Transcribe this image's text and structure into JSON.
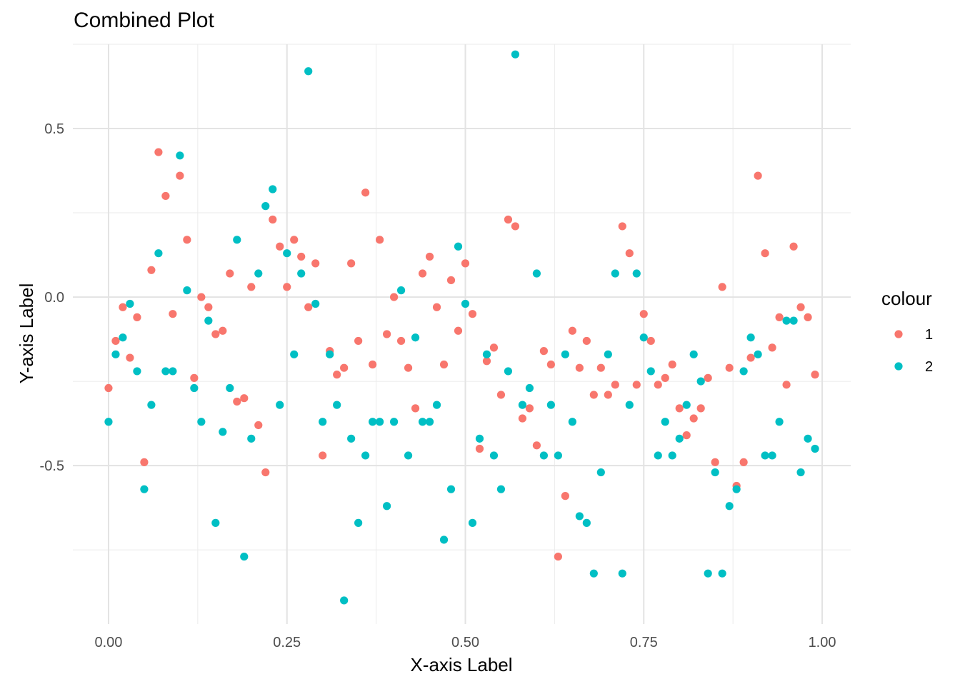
{
  "chart_data": {
    "type": "scatter",
    "title": "Combined Plot",
    "xlabel": "X-axis Label",
    "ylabel": "Y-axis Label",
    "xlim": [
      -0.05,
      1.04
    ],
    "ylim": [
      -0.97,
      0.75
    ],
    "x_ticks": [
      0,
      0.25,
      0.5,
      0.75,
      1.0
    ],
    "x_tick_labels": [
      "0.00",
      "0.25",
      "0.50",
      "0.75",
      "1.00"
    ],
    "y_ticks": [
      -0.5,
      0.0,
      0.5
    ],
    "y_tick_labels": [
      "-0.5",
      "0.0",
      "0.5"
    ],
    "grid": true,
    "legend": {
      "title": "colour",
      "position": "right"
    },
    "series": [
      {
        "name": "1",
        "color": "#F8766D",
        "points": [
          [
            0.0,
            -0.27
          ],
          [
            0.01,
            -0.13
          ],
          [
            0.02,
            -0.03
          ],
          [
            0.03,
            -0.18
          ],
          [
            0.04,
            -0.06
          ],
          [
            0.05,
            -0.49
          ],
          [
            0.06,
            0.08
          ],
          [
            0.07,
            0.43
          ],
          [
            0.08,
            0.3
          ],
          [
            0.09,
            -0.05
          ],
          [
            0.1,
            0.36
          ],
          [
            0.11,
            0.17
          ],
          [
            0.12,
            -0.24
          ],
          [
            0.13,
            0.0
          ],
          [
            0.14,
            -0.03
          ],
          [
            0.15,
            -0.11
          ],
          [
            0.16,
            -0.1
          ],
          [
            0.17,
            0.07
          ],
          [
            0.18,
            -0.31
          ],
          [
            0.19,
            -0.3
          ],
          [
            0.2,
            0.03
          ],
          [
            0.21,
            -0.38
          ],
          [
            0.22,
            -0.52
          ],
          [
            0.23,
            0.23
          ],
          [
            0.24,
            0.15
          ],
          [
            0.25,
            0.03
          ],
          [
            0.26,
            0.17
          ],
          [
            0.27,
            0.12
          ],
          [
            0.28,
            -0.03
          ],
          [
            0.29,
            0.1
          ],
          [
            0.3,
            -0.47
          ],
          [
            0.31,
            -0.16
          ],
          [
            0.32,
            -0.23
          ],
          [
            0.33,
            -0.21
          ],
          [
            0.34,
            0.1
          ],
          [
            0.35,
            -0.13
          ],
          [
            0.36,
            0.31
          ],
          [
            0.37,
            -0.2
          ],
          [
            0.38,
            0.17
          ],
          [
            0.39,
            -0.11
          ],
          [
            0.4,
            0.0
          ],
          [
            0.41,
            -0.13
          ],
          [
            0.42,
            -0.21
          ],
          [
            0.43,
            -0.33
          ],
          [
            0.44,
            0.07
          ],
          [
            0.45,
            0.12
          ],
          [
            0.46,
            -0.03
          ],
          [
            0.47,
            -0.2
          ],
          [
            0.48,
            0.05
          ],
          [
            0.49,
            -0.1
          ],
          [
            0.5,
            0.1
          ],
          [
            0.51,
            -0.05
          ],
          [
            0.52,
            -0.45
          ],
          [
            0.53,
            -0.19
          ],
          [
            0.54,
            -0.15
          ],
          [
            0.55,
            -0.29
          ],
          [
            0.56,
            0.23
          ],
          [
            0.57,
            0.21
          ],
          [
            0.58,
            -0.36
          ],
          [
            0.59,
            -0.33
          ],
          [
            0.6,
            -0.44
          ],
          [
            0.61,
            -0.16
          ],
          [
            0.62,
            -0.2
          ],
          [
            0.63,
            -0.77
          ],
          [
            0.64,
            -0.59
          ],
          [
            0.65,
            -0.1
          ],
          [
            0.66,
            -0.21
          ],
          [
            0.67,
            -0.13
          ],
          [
            0.68,
            -0.29
          ],
          [
            0.69,
            -0.21
          ],
          [
            0.7,
            -0.29
          ],
          [
            0.71,
            -0.26
          ],
          [
            0.72,
            0.21
          ],
          [
            0.73,
            0.13
          ],
          [
            0.74,
            -0.26
          ],
          [
            0.75,
            -0.05
          ],
          [
            0.76,
            -0.13
          ],
          [
            0.77,
            -0.26
          ],
          [
            0.78,
            -0.24
          ],
          [
            0.79,
            -0.2
          ],
          [
            0.8,
            -0.33
          ],
          [
            0.81,
            -0.41
          ],
          [
            0.82,
            -0.36
          ],
          [
            0.83,
            -0.33
          ],
          [
            0.84,
            -0.24
          ],
          [
            0.85,
            -0.49
          ],
          [
            0.86,
            0.03
          ],
          [
            0.87,
            -0.21
          ],
          [
            0.88,
            -0.56
          ],
          [
            0.89,
            -0.49
          ],
          [
            0.9,
            -0.18
          ],
          [
            0.91,
            0.36
          ],
          [
            0.92,
            0.13
          ],
          [
            0.93,
            -0.15
          ],
          [
            0.94,
            -0.06
          ],
          [
            0.95,
            -0.26
          ],
          [
            0.96,
            0.15
          ],
          [
            0.97,
            -0.03
          ],
          [
            0.98,
            -0.06
          ],
          [
            0.99,
            -0.23
          ]
        ]
      },
      {
        "name": "2",
        "color": "#00BFC4",
        "points": [
          [
            0.0,
            -0.37
          ],
          [
            0.01,
            -0.17
          ],
          [
            0.02,
            -0.12
          ],
          [
            0.03,
            -0.02
          ],
          [
            0.04,
            -0.22
          ],
          [
            0.05,
            -0.57
          ],
          [
            0.06,
            -0.32
          ],
          [
            0.07,
            0.13
          ],
          [
            0.08,
            -0.22
          ],
          [
            0.09,
            -0.22
          ],
          [
            0.1,
            0.42
          ],
          [
            0.11,
            0.02
          ],
          [
            0.12,
            -0.27
          ],
          [
            0.13,
            -0.37
          ],
          [
            0.14,
            -0.07
          ],
          [
            0.15,
            -0.67
          ],
          [
            0.16,
            -0.4
          ],
          [
            0.17,
            -0.27
          ],
          [
            0.18,
            0.17
          ],
          [
            0.19,
            -0.77
          ],
          [
            0.2,
            -0.42
          ],
          [
            0.21,
            0.07
          ],
          [
            0.22,
            0.27
          ],
          [
            0.23,
            0.32
          ],
          [
            0.24,
            -0.32
          ],
          [
            0.25,
            0.13
          ],
          [
            0.26,
            -0.17
          ],
          [
            0.27,
            0.07
          ],
          [
            0.28,
            0.67
          ],
          [
            0.29,
            -0.02
          ],
          [
            0.3,
            -0.37
          ],
          [
            0.31,
            -0.17
          ],
          [
            0.32,
            -0.32
          ],
          [
            0.33,
            -0.9
          ],
          [
            0.34,
            -0.42
          ],
          [
            0.35,
            -0.67
          ],
          [
            0.36,
            -0.47
          ],
          [
            0.37,
            -0.37
          ],
          [
            0.38,
            -0.37
          ],
          [
            0.39,
            -0.62
          ],
          [
            0.4,
            -0.37
          ],
          [
            0.41,
            0.02
          ],
          [
            0.42,
            -0.47
          ],
          [
            0.43,
            -0.12
          ],
          [
            0.44,
            -0.37
          ],
          [
            0.45,
            -0.37
          ],
          [
            0.46,
            -0.32
          ],
          [
            0.47,
            -0.72
          ],
          [
            0.48,
            -0.57
          ],
          [
            0.49,
            0.15
          ],
          [
            0.5,
            -0.02
          ],
          [
            0.51,
            -0.67
          ],
          [
            0.52,
            -0.42
          ],
          [
            0.53,
            -0.17
          ],
          [
            0.54,
            -0.47
          ],
          [
            0.55,
            -0.57
          ],
          [
            0.56,
            -0.22
          ],
          [
            0.57,
            0.72
          ],
          [
            0.58,
            -0.32
          ],
          [
            0.59,
            -0.27
          ],
          [
            0.6,
            0.07
          ],
          [
            0.61,
            -0.47
          ],
          [
            0.62,
            -0.32
          ],
          [
            0.63,
            -0.47
          ],
          [
            0.64,
            -0.17
          ],
          [
            0.65,
            -0.37
          ],
          [
            0.66,
            -0.65
          ],
          [
            0.67,
            -0.67
          ],
          [
            0.68,
            -0.82
          ],
          [
            0.69,
            -0.52
          ],
          [
            0.7,
            -0.17
          ],
          [
            0.71,
            0.07
          ],
          [
            0.72,
            -0.82
          ],
          [
            0.73,
            -0.32
          ],
          [
            0.74,
            0.07
          ],
          [
            0.75,
            -0.12
          ],
          [
            0.76,
            -0.22
          ],
          [
            0.77,
            -0.47
          ],
          [
            0.78,
            -0.37
          ],
          [
            0.79,
            -0.47
          ],
          [
            0.8,
            -0.42
          ],
          [
            0.81,
            -0.32
          ],
          [
            0.82,
            -0.17
          ],
          [
            0.83,
            -0.25
          ],
          [
            0.84,
            -0.82
          ],
          [
            0.85,
            -0.52
          ],
          [
            0.86,
            -0.82
          ],
          [
            0.87,
            -0.62
          ],
          [
            0.88,
            -0.57
          ],
          [
            0.89,
            -0.22
          ],
          [
            0.9,
            -0.12
          ],
          [
            0.91,
            -0.17
          ],
          [
            0.92,
            -0.47
          ],
          [
            0.93,
            -0.47
          ],
          [
            0.94,
            -0.37
          ],
          [
            0.95,
            -0.07
          ],
          [
            0.96,
            -0.07
          ],
          [
            0.97,
            -0.52
          ],
          [
            0.98,
            -0.42
          ],
          [
            0.99,
            -0.45
          ]
        ]
      }
    ]
  }
}
